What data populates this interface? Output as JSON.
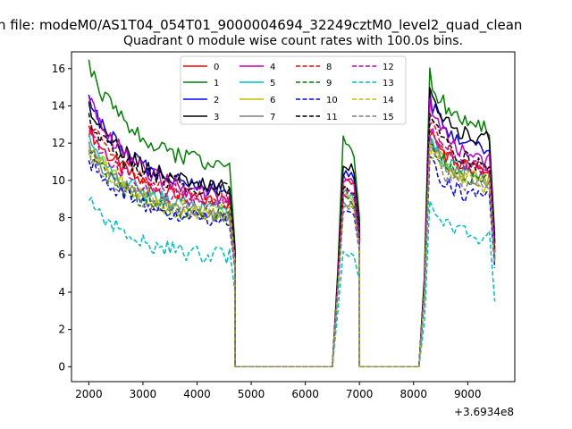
{
  "figure": {
    "suptitle": "n file: modeM0/AS1T04_054T01_9000004694_32249cztM0_level2_quad_clean",
    "title": "Quadrant 0 module wise count rates with 100.0s bins.",
    "x_offset_label": "+3.6934e8"
  },
  "chart_data": {
    "type": "line",
    "title": "Quadrant 0 module wise count rates with 100.0s bins.",
    "xlabel": "",
    "ylabel": "",
    "x_offset": 369340000,
    "xlim": [
      1680,
      9870
    ],
    "ylim": [
      -0.8,
      16.9
    ],
    "xticks": [
      2000,
      3000,
      4000,
      5000,
      6000,
      7000,
      8000,
      9000
    ],
    "yticks": [
      0,
      2,
      4,
      6,
      8,
      10,
      12,
      14,
      16
    ],
    "grid": false,
    "legend": {
      "placement": "top-center",
      "columns": 4
    },
    "segments": [
      {
        "x0": 2000,
        "x1": 4600,
        "shape": "decay"
      },
      {
        "x0": 6700,
        "x1": 6900,
        "shape": "peak"
      },
      {
        "x0": 8300,
        "x1": 9400,
        "shape": "decay"
      }
    ],
    "zero_intervals": [
      [
        4700,
        6500
      ],
      [
        7000,
        8100
      ]
    ],
    "series": [
      {
        "name": "0",
        "color": "#ff0000",
        "dash": "solid",
        "seg_start": [
          12.8,
          10.3,
          12.7
        ],
        "seg_end": [
          8.8,
          9.7,
          10.5
        ],
        "tail": [
          5.9,
          7.0,
          6.1
        ]
      },
      {
        "name": "1",
        "color": "#008000",
        "dash": "solid",
        "seg_start": [
          16.1,
          12.2,
          15.6
        ],
        "seg_end": [
          10.8,
          11.4,
          12.8
        ],
        "tail": [
          6.5,
          8.0,
          7.0
        ]
      },
      {
        "name": "2",
        "color": "#0000ff",
        "dash": "solid",
        "seg_start": [
          14.2,
          10.4,
          14.4
        ],
        "seg_end": [
          9.5,
          10.2,
          11.7
        ],
        "tail": [
          6.2,
          7.5,
          6.6
        ]
      },
      {
        "name": "3",
        "color": "#000000",
        "dash": "solid",
        "seg_start": [
          13.9,
          10.9,
          14.9
        ],
        "seg_end": [
          9.6,
          10.6,
          12.2
        ],
        "tail": [
          6.3,
          7.6,
          6.7
        ]
      },
      {
        "name": "4",
        "color": "#bf00bf",
        "dash": "solid",
        "seg_start": [
          14.5,
          10.1,
          14.3
        ],
        "seg_end": [
          9.1,
          9.9,
          11.0
        ],
        "tail": [
          6.0,
          7.2,
          6.3
        ]
      },
      {
        "name": "5",
        "color": "#00bfbf",
        "dash": "solid",
        "seg_start": [
          12.1,
          9.4,
          12.3
        ],
        "seg_end": [
          8.4,
          9.1,
          10.2
        ],
        "tail": [
          5.6,
          6.8,
          5.9
        ]
      },
      {
        "name": "6",
        "color": "#bfbf00",
        "dash": "solid",
        "seg_start": [
          12.2,
          9.2,
          11.9
        ],
        "seg_end": [
          7.9,
          8.9,
          10.1
        ],
        "tail": [
          5.4,
          6.6,
          5.7
        ]
      },
      {
        "name": "7",
        "color": "#808080",
        "dash": "solid",
        "seg_start": [
          11.8,
          8.9,
          12.0
        ],
        "seg_end": [
          8.1,
          8.6,
          10.0
        ],
        "tail": [
          5.5,
          6.5,
          5.8
        ]
      },
      {
        "name": "8",
        "color": "#ff0000",
        "dash": "dashed",
        "seg_start": [
          13.1,
          9.8,
          13.2
        ],
        "seg_end": [
          8.9,
          9.3,
          10.5
        ],
        "tail": [
          5.9,
          7.0,
          6.2
        ]
      },
      {
        "name": "9",
        "color": "#008000",
        "dash": "dashed",
        "seg_start": [
          11.5,
          9.0,
          12.1
        ],
        "seg_end": [
          8.0,
          8.7,
          10.0
        ],
        "tail": [
          5.5,
          6.6,
          5.8
        ]
      },
      {
        "name": "10",
        "color": "#0000ff",
        "dash": "dashed",
        "seg_start": [
          11.1,
          8.3,
          11.2
        ],
        "seg_end": [
          7.8,
          8.0,
          9.0
        ],
        "tail": [
          5.3,
          6.2,
          5.3
        ]
      },
      {
        "name": "11",
        "color": "#000000",
        "dash": "dashed",
        "seg_start": [
          13.3,
          9.6,
          13.6
        ],
        "seg_end": [
          9.4,
          9.4,
          10.8
        ],
        "tail": [
          6.1,
          7.1,
          6.3
        ]
      },
      {
        "name": "12",
        "color": "#bf00bf",
        "dash": "dashed",
        "seg_start": [
          12.5,
          9.4,
          12.8
        ],
        "seg_end": [
          8.7,
          9.1,
          10.6
        ],
        "tail": [
          5.8,
          6.9,
          6.1
        ]
      },
      {
        "name": "13",
        "color": "#00bfbf",
        "dash": "dashed",
        "seg_start": [
          8.9,
          6.2,
          8.8
        ],
        "seg_end": [
          5.9,
          6.0,
          6.9
        ],
        "tail": [
          4.0,
          4.6,
          3.5
        ]
      },
      {
        "name": "14",
        "color": "#bfbf00",
        "dash": "dashed",
        "seg_start": [
          11.7,
          8.7,
          11.9
        ],
        "seg_end": [
          8.3,
          8.5,
          9.7
        ],
        "tail": [
          5.6,
          6.4,
          5.6
        ]
      },
      {
        "name": "15",
        "color": "#808080",
        "dash": "dashed",
        "seg_start": [
          11.4,
          8.6,
          11.6
        ],
        "seg_end": [
          8.1,
          8.4,
          9.4
        ],
        "tail": [
          5.5,
          6.3,
          5.5
        ]
      }
    ]
  }
}
